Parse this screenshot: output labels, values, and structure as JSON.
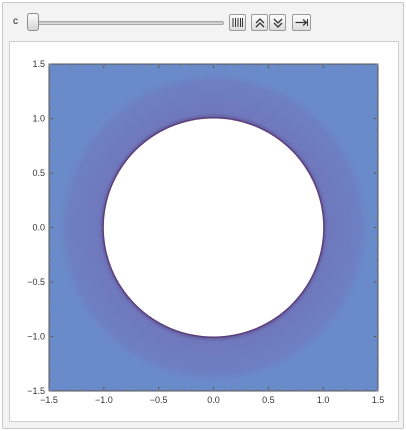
{
  "controls": {
    "parameter_label": "c",
    "slider_value": 0,
    "buttons": [
      {
        "name": "show-animation-controls",
        "icon": "vertical-bars-icon"
      },
      {
        "name": "speed-up",
        "icon": "double-chevron-up-icon"
      },
      {
        "name": "slow-down",
        "icon": "double-chevron-down-icon"
      },
      {
        "name": "direction",
        "icon": "right-arrow-icon"
      }
    ]
  },
  "plot": {
    "fill_color": "#6a8bc9",
    "ring_color": "#6f78bd",
    "edge_color": "#5a3f7a",
    "hole_color": "#ffffff"
  },
  "chart_data": {
    "type": "heatmap",
    "title": "",
    "xlabel": "",
    "ylabel": "",
    "xlim": [
      -1.5,
      1.5
    ],
    "ylim": [
      -1.5,
      1.5
    ],
    "x_ticks": [
      -1.5,
      -1.0,
      -0.5,
      0.0,
      0.5,
      1.0,
      1.5
    ],
    "y_ticks": [
      -1.5,
      -1.0,
      -0.5,
      0.0,
      0.5,
      1.0,
      1.5
    ],
    "x_tick_labels": [
      "−1.5",
      "−1.0",
      "−0.5",
      "0.0",
      "0.5",
      "1.0",
      "1.5"
    ],
    "y_tick_labels": [
      "−1.5",
      "−1.0",
      "−0.5",
      "0.0",
      "0.5",
      "1.0",
      "1.5"
    ],
    "excluded_region": {
      "shape": "circle",
      "center": [
        0,
        0
      ],
      "radius": 1.0
    },
    "grid": false
  }
}
